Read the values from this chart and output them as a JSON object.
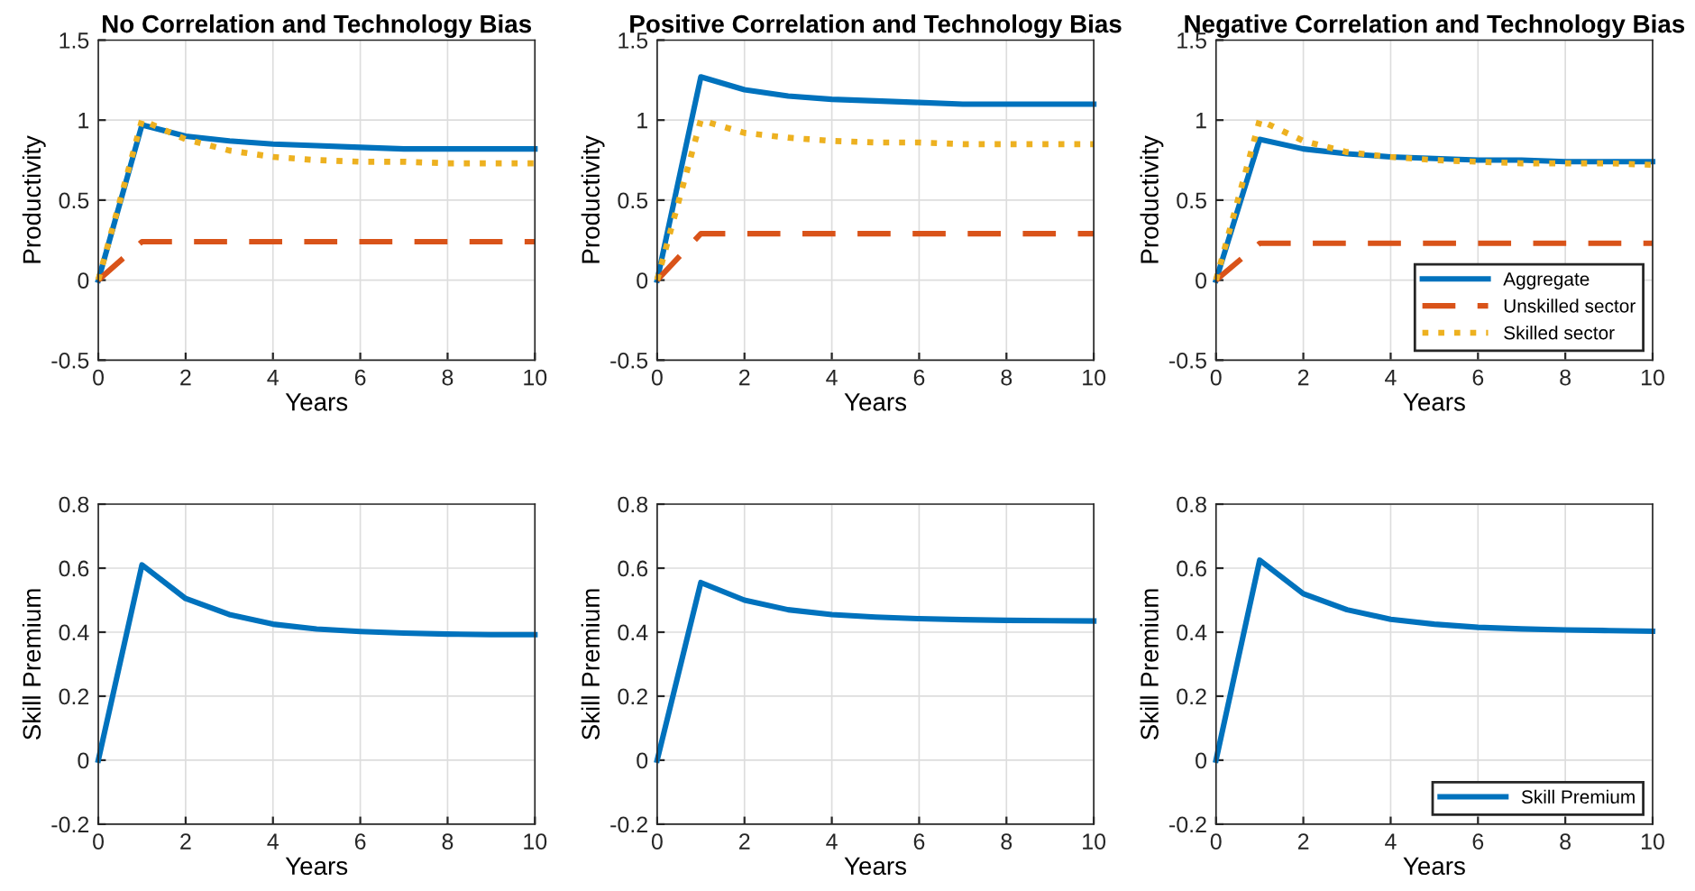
{
  "chart_data": [
    {
      "type": "line",
      "title": "No Correlation and Technology Bias",
      "xlabel": "Years",
      "ylabel": "Productivity",
      "x": [
        0,
        1,
        2,
        3,
        4,
        5,
        6,
        7,
        8,
        9,
        10
      ],
      "xlim": [
        0,
        10
      ],
      "xticks": [
        0,
        2,
        4,
        6,
        8,
        10
      ],
      "ylim": [
        -0.5,
        1.5
      ],
      "yticks": [
        -0.5,
        0,
        0.5,
        1,
        1.5
      ],
      "grid": true,
      "legend": false,
      "series": [
        {
          "color": "#0072bd",
          "line_style": "solid",
          "values": [
            0,
            0.97,
            0.9,
            0.87,
            0.85,
            0.84,
            0.83,
            0.82,
            0.82,
            0.82,
            0.82
          ]
        },
        {
          "color": "#d95319",
          "line_style": "dashed",
          "values": [
            0,
            0.24,
            0.24,
            0.24,
            0.24,
            0.24,
            0.24,
            0.24,
            0.24,
            0.24,
            0.24
          ]
        },
        {
          "color": "#edb120",
          "line_style": "dotted",
          "values": [
            0,
            1.0,
            0.88,
            0.81,
            0.77,
            0.75,
            0.74,
            0.74,
            0.73,
            0.73,
            0.73
          ]
        }
      ]
    },
    {
      "type": "line",
      "title": "Positive Correlation and Technology Bias",
      "xlabel": "Years",
      "ylabel": "Productivity",
      "x": [
        0,
        1,
        2,
        3,
        4,
        5,
        6,
        7,
        8,
        9,
        10
      ],
      "xlim": [
        0,
        10
      ],
      "xticks": [
        0,
        2,
        4,
        6,
        8,
        10
      ],
      "ylim": [
        -0.5,
        1.5
      ],
      "yticks": [
        -0.5,
        0,
        0.5,
        1,
        1.5
      ],
      "grid": true,
      "legend": false,
      "series": [
        {
          "color": "#0072bd",
          "line_style": "solid",
          "values": [
            0,
            1.27,
            1.19,
            1.15,
            1.13,
            1.12,
            1.11,
            1.1,
            1.1,
            1.1,
            1.1
          ]
        },
        {
          "color": "#d95319",
          "line_style": "dashed",
          "values": [
            0,
            0.29,
            0.29,
            0.29,
            0.29,
            0.29,
            0.29,
            0.29,
            0.29,
            0.29,
            0.29
          ]
        },
        {
          "color": "#edb120",
          "line_style": "dotted",
          "values": [
            0,
            1.0,
            0.92,
            0.89,
            0.87,
            0.86,
            0.86,
            0.85,
            0.85,
            0.85,
            0.85
          ]
        }
      ]
    },
    {
      "type": "line",
      "title": "Negative Correlation and Technology Bias",
      "xlabel": "Years",
      "ylabel": "Productivity",
      "x": [
        0,
        1,
        2,
        3,
        4,
        5,
        6,
        7,
        8,
        9,
        10
      ],
      "xlim": [
        0,
        10
      ],
      "xticks": [
        0,
        2,
        4,
        6,
        8,
        10
      ],
      "ylim": [
        -0.5,
        1.5
      ],
      "yticks": [
        -0.5,
        0,
        0.5,
        1,
        1.5
      ],
      "grid": true,
      "legend": "bottom right",
      "series": [
        {
          "name": "Aggregate",
          "color": "#0072bd",
          "line_style": "solid",
          "values": [
            0,
            0.88,
            0.82,
            0.79,
            0.77,
            0.76,
            0.75,
            0.75,
            0.74,
            0.74,
            0.74
          ]
        },
        {
          "name": "Unskilled sector",
          "color": "#d95319",
          "line_style": "dashed",
          "values": [
            0,
            0.23,
            0.23,
            0.23,
            0.23,
            0.23,
            0.23,
            0.23,
            0.23,
            0.23,
            0.23
          ]
        },
        {
          "name": "Skilled sector",
          "color": "#edb120",
          "line_style": "dotted",
          "values": [
            0,
            1.0,
            0.87,
            0.8,
            0.77,
            0.75,
            0.74,
            0.73,
            0.73,
            0.73,
            0.72
          ]
        }
      ]
    },
    {
      "type": "line",
      "xlabel": "Years",
      "ylabel": "Skill Premium",
      "x": [
        0,
        1,
        2,
        3,
        4,
        5,
        6,
        7,
        8,
        9,
        10
      ],
      "xlim": [
        0,
        10
      ],
      "xticks": [
        0,
        2,
        4,
        6,
        8,
        10
      ],
      "ylim": [
        -0.2,
        0.8
      ],
      "yticks": [
        -0.2,
        0,
        0.2,
        0.4,
        0.6,
        0.8
      ],
      "grid": true,
      "legend": false,
      "series": [
        {
          "color": "#0072bd",
          "line_style": "solid",
          "values": [
            0,
            0.61,
            0.505,
            0.455,
            0.425,
            0.41,
            0.402,
            0.397,
            0.394,
            0.392,
            0.392
          ]
        }
      ]
    },
    {
      "type": "line",
      "xlabel": "Years",
      "ylabel": "Skill Premium",
      "x": [
        0,
        1,
        2,
        3,
        4,
        5,
        6,
        7,
        8,
        9,
        10
      ],
      "xlim": [
        0,
        10
      ],
      "xticks": [
        0,
        2,
        4,
        6,
        8,
        10
      ],
      "ylim": [
        -0.2,
        0.8
      ],
      "yticks": [
        -0.2,
        0,
        0.2,
        0.4,
        0.6,
        0.8
      ],
      "grid": true,
      "legend": false,
      "series": [
        {
          "color": "#0072bd",
          "line_style": "solid",
          "values": [
            0,
            0.555,
            0.5,
            0.47,
            0.455,
            0.447,
            0.442,
            0.439,
            0.437,
            0.436,
            0.435
          ]
        }
      ]
    },
    {
      "type": "line",
      "xlabel": "Years",
      "ylabel": "Skill Premium",
      "x": [
        0,
        1,
        2,
        3,
        4,
        5,
        6,
        7,
        8,
        9,
        10
      ],
      "xlim": [
        0,
        10
      ],
      "xticks": [
        0,
        2,
        4,
        6,
        8,
        10
      ],
      "ylim": [
        -0.2,
        0.8
      ],
      "yticks": [
        -0.2,
        0,
        0.2,
        0.4,
        0.6,
        0.8
      ],
      "grid": true,
      "legend": "bottom right",
      "series": [
        {
          "name": "Skill Premium",
          "color": "#0072bd",
          "line_style": "solid",
          "values": [
            0,
            0.625,
            0.52,
            0.47,
            0.44,
            0.425,
            0.415,
            0.41,
            0.407,
            0.405,
            0.403
          ]
        }
      ]
    }
  ]
}
